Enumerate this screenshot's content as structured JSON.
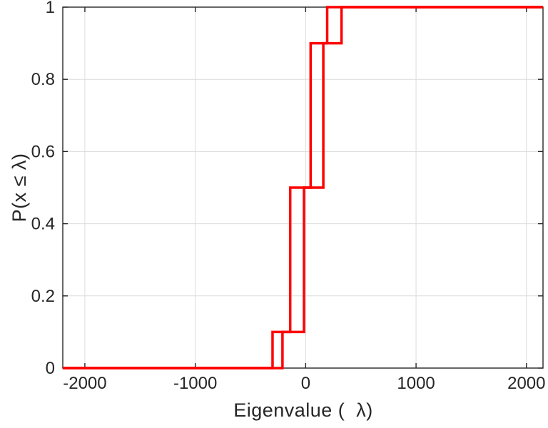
{
  "chart_data": {
    "type": "line",
    "subtype": "ecdf-staircase",
    "title": "",
    "xlabel": "Eigenvalue (  λ)",
    "ylabel": "P(x ≤ λ)",
    "xlim": [
      -2200,
      2150
    ],
    "ylim": [
      0,
      1
    ],
    "xticks": [
      -2000,
      -1000,
      0,
      1000,
      2000
    ],
    "xtick_labels": [
      "-2000",
      "-1000",
      "0",
      "1000",
      "2000"
    ],
    "yticks": [
      0,
      0.2,
      0.4,
      0.6,
      0.8,
      1
    ],
    "ytick_labels": [
      "0",
      "0.2",
      "0.4",
      "0.6",
      "0.8",
      "1"
    ],
    "grid": true,
    "legend": "none",
    "grid_color": "#dcdcdc",
    "axis_color": "#262626",
    "line_color": "#ff0000",
    "line_width": 3.5,
    "series": [
      {
        "name": "ecdf-curve-1",
        "jump_x": [
          -300,
          -140,
          45,
          195
        ],
        "levels": [
          0,
          0.1,
          0.5,
          0.9,
          1
        ]
      },
      {
        "name": "ecdf-curve-2",
        "jump_x": [
          -210,
          -15,
          160,
          325
        ],
        "levels": [
          0,
          0.1,
          0.5,
          0.9,
          1
        ]
      }
    ]
  }
}
